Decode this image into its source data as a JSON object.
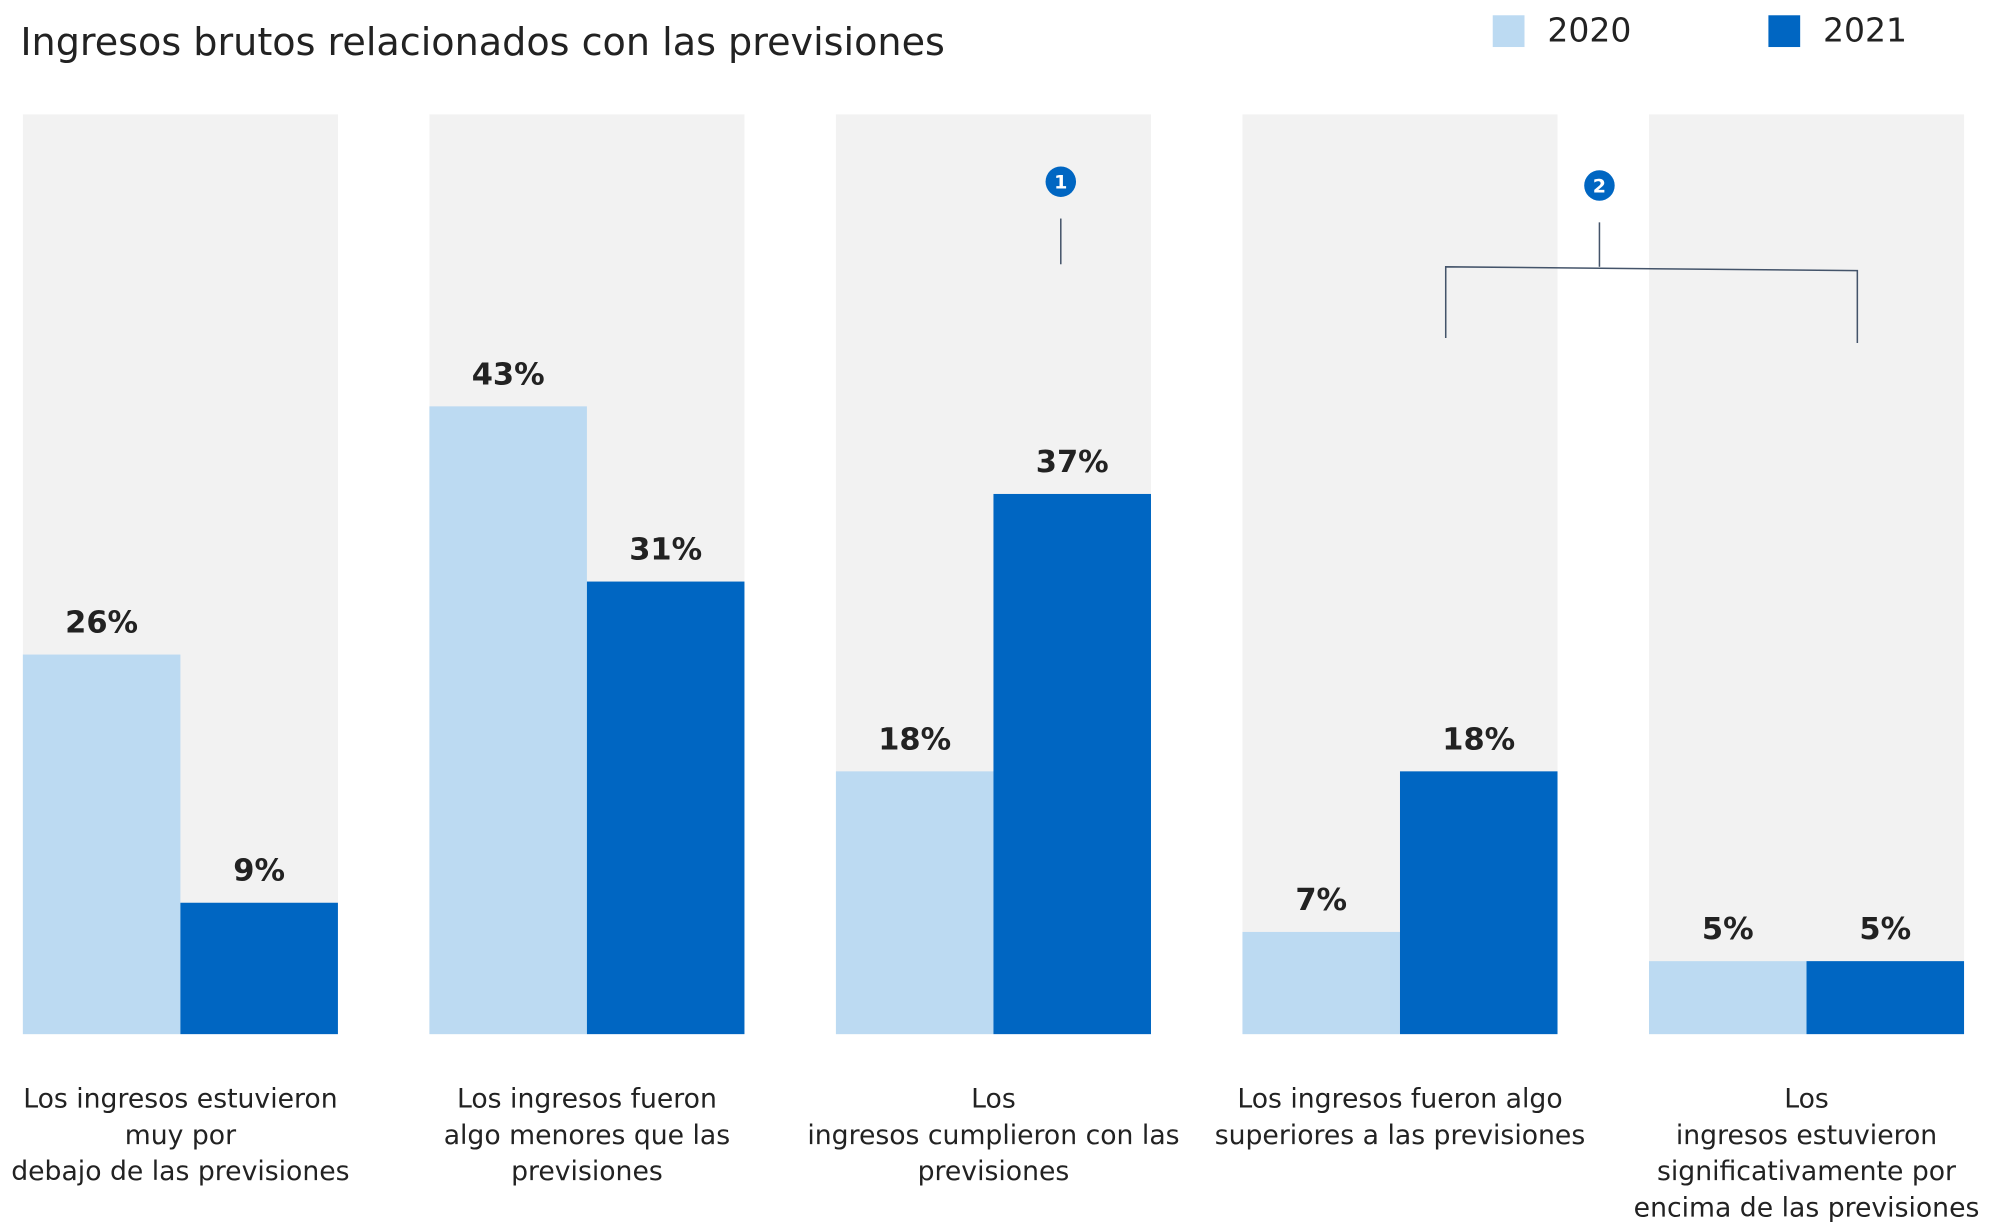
{
  "chart_data": {
    "type": "bar",
    "title": "Ingresos brutos relacionados con las previsiones",
    "categories": [
      [
        "Los ingresos estuvieron",
        "muy por",
        "debajo de las previsiones"
      ],
      [
        "Los ingresos fueron",
        "algo menores que las",
        "previsiones"
      ],
      [
        "Los",
        "ingresos cumplieron con las",
        "previsiones"
      ],
      [
        "Los ingresos fueron algo",
        "superiores a las previsiones"
      ],
      [
        "Los",
        "ingresos estuvieron",
        "significativamente por",
        "encima de las previsiones"
      ]
    ],
    "series": [
      {
        "name": "2020",
        "color": "#bcdaf2",
        "values": [
          26,
          43,
          18,
          7,
          5
        ],
        "value_labels": [
          "26%",
          "43%",
          "18%",
          "7%",
          "5%"
        ]
      },
      {
        "name": "2021",
        "color": "#0066c2",
        "values": [
          9,
          31,
          37,
          18,
          5
        ],
        "value_labels": [
          "9%",
          "31%",
          "37%",
          "18%",
          "5%"
        ]
      }
    ],
    "ylim": [
      0,
      63
    ],
    "panel_color": "#f2f2f2",
    "annotations": [
      "1",
      "2"
    ]
  }
}
